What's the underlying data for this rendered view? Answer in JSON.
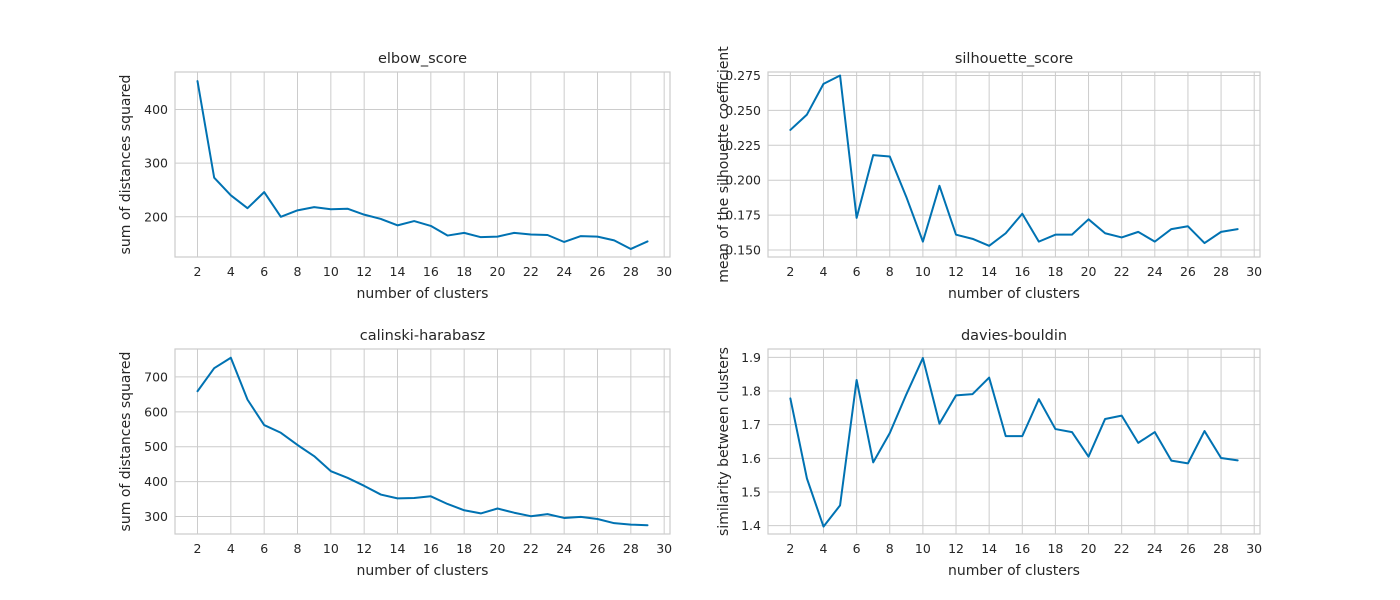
{
  "chart_data": [
    {
      "type": "line",
      "title": "elbow_score",
      "xlabel": "number of clusters",
      "ylabel": "sum of distances squared",
      "xlim": [
        0.65,
        30.35
      ],
      "ylim": [
        125,
        470
      ],
      "xticks": [
        2,
        4,
        6,
        8,
        10,
        12,
        14,
        16,
        18,
        20,
        22,
        24,
        26,
        28,
        30
      ],
      "yticks": [
        200,
        300,
        400
      ],
      "ytick_labels": [
        "200",
        "300",
        "400"
      ],
      "grid": true,
      "x": [
        2,
        3,
        4,
        5,
        6,
        7,
        8,
        9,
        10,
        11,
        12,
        13,
        14,
        15,
        16,
        17,
        18,
        19,
        20,
        21,
        22,
        23,
        24,
        25,
        26,
        27,
        28,
        29
      ],
      "series": [
        {
          "values": [
            453,
            273,
            240,
            216,
            246,
            200,
            212,
            218,
            214,
            215,
            204,
            196,
            184,
            192,
            183,
            165,
            170,
            162,
            163,
            170,
            167,
            166,
            153,
            164,
            163,
            156,
            140,
            154
          ],
          "color": "#0072b2"
        }
      ]
    },
    {
      "type": "line",
      "title": "silhouette_score",
      "xlabel": "number of clusters",
      "ylabel": "mean of the silhouette coefficient",
      "xlim": [
        0.65,
        30.35
      ],
      "ylim": [
        0.145,
        0.2775
      ],
      "xticks": [
        2,
        4,
        6,
        8,
        10,
        12,
        14,
        16,
        18,
        20,
        22,
        24,
        26,
        28,
        30
      ],
      "yticks": [
        0.15,
        0.175,
        0.2,
        0.225,
        0.25,
        0.275
      ],
      "ytick_labels": [
        "0.150",
        "0.175",
        "0.200",
        "0.225",
        "0.250",
        "0.275"
      ],
      "grid": true,
      "x": [
        2,
        3,
        4,
        5,
        6,
        7,
        8,
        9,
        10,
        11,
        12,
        13,
        14,
        15,
        16,
        17,
        18,
        19,
        20,
        21,
        22,
        23,
        24,
        25,
        26,
        27,
        28,
        29
      ],
      "series": [
        {
          "values": [
            0.236,
            0.247,
            0.269,
            0.275,
            0.173,
            0.218,
            0.217,
            0.188,
            0.156,
            0.196,
            0.161,
            0.158,
            0.153,
            0.162,
            0.176,
            0.156,
            0.161,
            0.161,
            0.172,
            0.162,
            0.159,
            0.163,
            0.156,
            0.165,
            0.167,
            0.155,
            0.163,
            0.165
          ],
          "color": "#0072b2"
        }
      ]
    },
    {
      "type": "line",
      "title": "calinski-harabasz",
      "xlabel": "number of clusters",
      "ylabel": "sum of distances squared",
      "xlim": [
        0.65,
        30.35
      ],
      "ylim": [
        250,
        780
      ],
      "xticks": [
        2,
        4,
        6,
        8,
        10,
        12,
        14,
        16,
        18,
        20,
        22,
        24,
        26,
        28,
        30
      ],
      "yticks": [
        300,
        400,
        500,
        600,
        700
      ],
      "ytick_labels": [
        "300",
        "400",
        "500",
        "600",
        "700"
      ],
      "grid": true,
      "x": [
        2,
        3,
        4,
        5,
        6,
        7,
        8,
        9,
        10,
        11,
        12,
        13,
        14,
        15,
        16,
        17,
        18,
        19,
        20,
        21,
        22,
        23,
        24,
        25,
        26,
        27,
        28,
        29
      ],
      "series": [
        {
          "values": [
            659,
            725,
            755,
            635,
            562,
            540,
            505,
            473,
            430,
            411,
            388,
            363,
            352,
            353,
            358,
            336,
            318,
            309,
            323,
            311,
            301,
            307,
            296,
            299,
            293,
            281,
            277,
            275
          ],
          "color": "#0072b2"
        }
      ]
    },
    {
      "type": "line",
      "title": "davies-bouldin",
      "xlabel": "number of clusters",
      "ylabel": "similarity between clusters",
      "xlim": [
        0.65,
        30.35
      ],
      "ylim": [
        1.375,
        1.925
      ],
      "xticks": [
        2,
        4,
        6,
        8,
        10,
        12,
        14,
        16,
        18,
        20,
        22,
        24,
        26,
        28,
        30
      ],
      "yticks": [
        1.4,
        1.5,
        1.6,
        1.7,
        1.8,
        1.9
      ],
      "ytick_labels": [
        "1.4",
        "1.5",
        "1.6",
        "1.7",
        "1.8",
        "1.9"
      ],
      "grid": true,
      "x": [
        2,
        3,
        4,
        5,
        6,
        7,
        8,
        9,
        10,
        11,
        12,
        13,
        14,
        15,
        16,
        17,
        18,
        19,
        20,
        21,
        22,
        23,
        24,
        25,
        26,
        27,
        28,
        29
      ],
      "series": [
        {
          "values": [
            1.778,
            1.54,
            1.397,
            1.46,
            1.833,
            1.588,
            1.675,
            1.79,
            1.898,
            1.703,
            1.787,
            1.791,
            1.84,
            1.666,
            1.666,
            1.776,
            1.687,
            1.678,
            1.605,
            1.717,
            1.727,
            1.646,
            1.678,
            1.593,
            1.585,
            1.681,
            1.601,
            1.594
          ],
          "color": "#0072b2"
        }
      ]
    }
  ]
}
